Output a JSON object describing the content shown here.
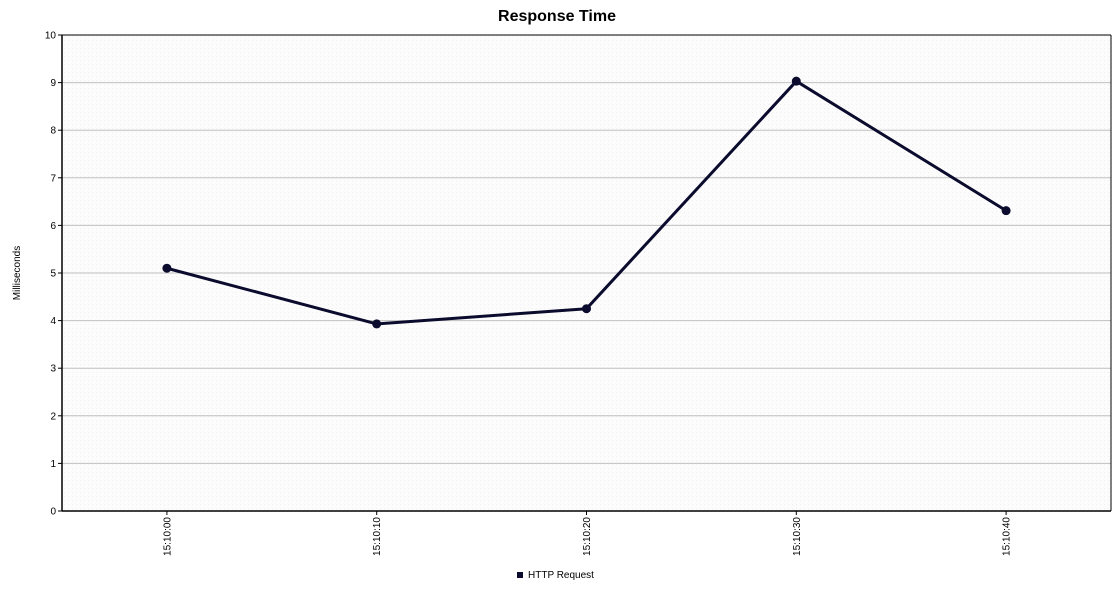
{
  "chart_data": {
    "type": "line",
    "title": "Response Time",
    "xlabel": "",
    "ylabel": "Milliseconds",
    "categories": [
      "15:10:00",
      "15:10:10",
      "15:10:20",
      "15:10:30",
      "15:10:40"
    ],
    "series": [
      {
        "name": "HTTP Request",
        "values": [
          5.1,
          3.93,
          4.25,
          9.03,
          6.31
        ],
        "color": "#0b0b2e"
      }
    ],
    "ylim": [
      0,
      10
    ],
    "yticks": [
      "0",
      "1",
      "2",
      "3",
      "4",
      "5",
      "6",
      "7",
      "8",
      "9",
      "10"
    ],
    "grid": true,
    "legend_position": "bottom-center",
    "colors": {
      "plot_background": "#fafafa",
      "grid": "#c0c0c0",
      "axis": "#000000"
    }
  }
}
